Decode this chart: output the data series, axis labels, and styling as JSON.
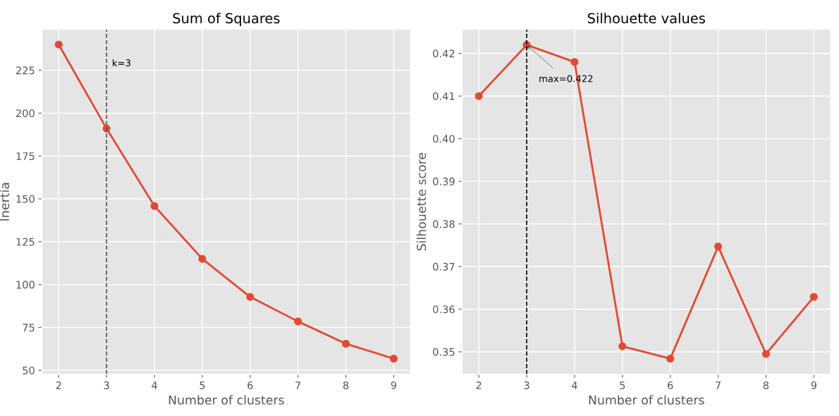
{
  "chart_data": [
    {
      "type": "line",
      "title": "Sum of Squares",
      "xlabel": "Number of clusters",
      "ylabel": "Inertia",
      "x": [
        2,
        3,
        4,
        5,
        6,
        7,
        8,
        9
      ],
      "series": [
        {
          "color": "#e24a33",
          "values": [
            240,
            191,
            145.8,
            115,
            92.8,
            78.5,
            65.5,
            56.8
          ]
        }
      ],
      "xlim": [
        1.65,
        9.35
      ],
      "xticks": [
        2,
        3,
        4,
        5,
        6,
        7,
        8,
        9
      ],
      "ylim": [
        47.6,
        249
      ],
      "yticks": [
        50,
        75,
        100,
        125,
        150,
        175,
        200,
        225
      ],
      "ref_lines": [
        {
          "axis": "x",
          "value": 3,
          "color": "#555555",
          "line_style": "dashed"
        }
      ],
      "annotations": [
        "k=3"
      ],
      "grid": true,
      "marker": "circle",
      "line_style": "solid",
      "legend": false
    },
    {
      "type": "line",
      "title": "Silhouette values",
      "xlabel": "Number of clusters",
      "ylabel": "Silhouette score",
      "x": [
        2,
        3,
        4,
        5,
        6,
        7,
        8,
        9
      ],
      "series": [
        {
          "color": "#e24a33",
          "values": [
            0.41,
            0.422,
            0.418,
            0.3513,
            0.3484,
            0.3747,
            0.3495,
            0.3629
          ]
        }
      ],
      "xlim": [
        1.65,
        9.35
      ],
      "xticks": [
        2,
        3,
        4,
        5,
        6,
        7,
        8,
        9
      ],
      "ylim": [
        0.3447,
        0.4257
      ],
      "yticks": [
        0.35,
        0.36,
        0.37,
        0.38,
        0.39,
        {
          "value": 0.4,
          "label": "0.40"
        },
        0.41,
        0.42
      ],
      "ref_lines": [
        {
          "axis": "x",
          "value": 3,
          "color": "#000000",
          "line_style": "dashed"
        }
      ],
      "annotations": [
        {
          "text": "max=0.422",
          "x": 3,
          "y": 0.422
        }
      ],
      "grid": true,
      "marker": "circle",
      "line_style": "solid",
      "legend": false
    }
  ]
}
